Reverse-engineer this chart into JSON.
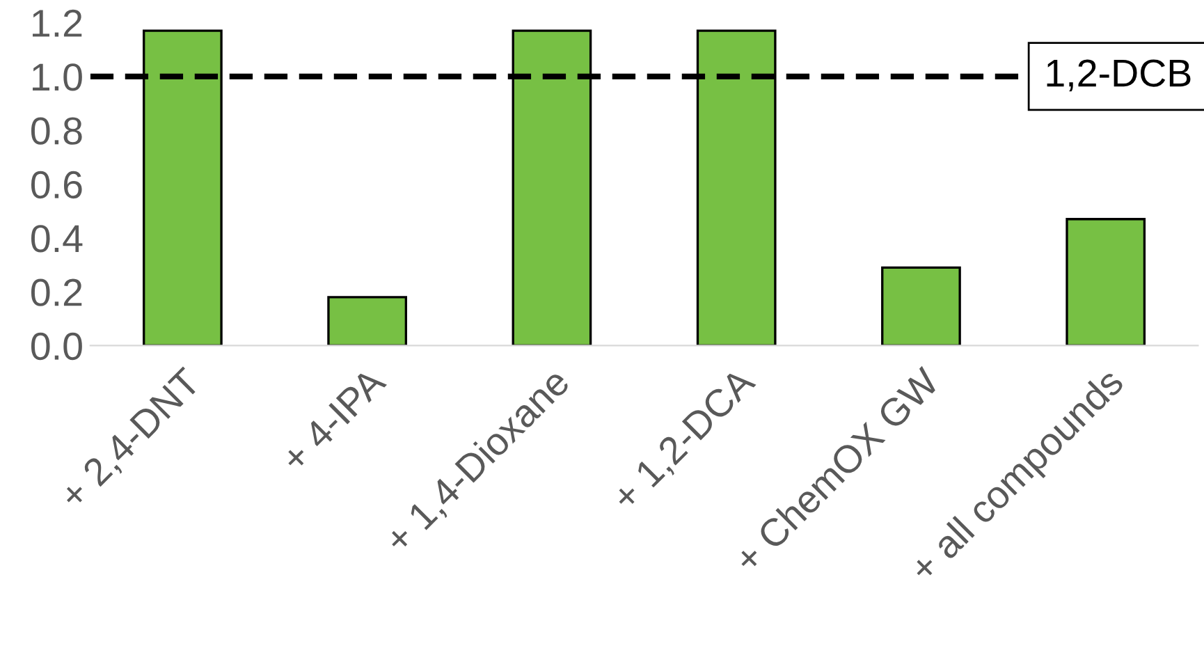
{
  "chart_data": {
    "type": "bar",
    "categories": [
      "+ 2,4-DNT",
      "+ 4-IPA",
      "+ 1,4-Dioxane",
      "+ 1,2-DCA",
      "+ ChemOX GW",
      "+ all compounds"
    ],
    "values": [
      1.17,
      0.18,
      1.17,
      1.17,
      0.29,
      0.47
    ],
    "color": "#77c044",
    "ylim": [
      0,
      1.2
    ],
    "yticks": [
      "0.0",
      0.2,
      0.4,
      0.6,
      0.8,
      "1.0",
      1.2
    ],
    "grid": false,
    "ref_lines": [
      {
        "axis": "y",
        "value": 1.0,
        "label": "1,2-DCB",
        "color": "#000000",
        "line_style": "dashed"
      }
    ]
  }
}
